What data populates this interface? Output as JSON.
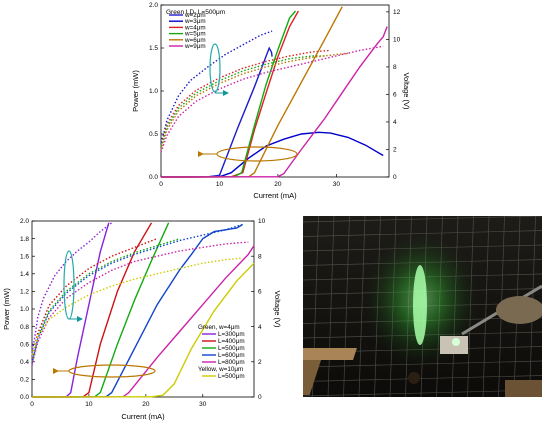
{
  "chart_data": [
    {
      "type": "line",
      "title": "Green LD, L=500μm",
      "xlabel": "Current (mA)",
      "ylabel": "Power (mW)",
      "y2label": "Voltage (V)",
      "xlim": [
        0,
        39
      ],
      "ylim": [
        0,
        2.0
      ],
      "y2lim": [
        0,
        12.5
      ],
      "xticks": [
        0,
        10,
        20,
        30
      ],
      "yticks": [
        0.0,
        0.5,
        1.0,
        1.5,
        2.0
      ],
      "y2ticks": [
        0,
        2,
        4,
        6,
        8,
        10,
        12
      ],
      "series": [
        {
          "name": "w=2μm",
          "color": "#1c1ccc",
          "power": [
            [
              0,
              0
            ],
            [
              8,
              0.002
            ],
            [
              10,
              0.02
            ],
            [
              13,
              0.55
            ],
            [
              16,
              1.05
            ],
            [
              18.5,
              1.5
            ],
            [
              18.9,
              1.45
            ],
            [
              19,
              1.4
            ]
          ],
          "voltage": [
            [
              0,
              2.5
            ],
            [
              0.5,
              3.2
            ],
            [
              1,
              4.1
            ],
            [
              3,
              5.9
            ],
            [
              5,
              7.0
            ],
            [
              8,
              8.0
            ],
            [
              11,
              8.9
            ],
            [
              14,
              9.6
            ],
            [
              17,
              10.3
            ],
            [
              19,
              10.6
            ]
          ]
        },
        {
          "name": "w=3μm",
          "color": "#0000cc",
          "power": [
            [
              0,
              0
            ],
            [
              10,
              0.002
            ],
            [
              12,
              0.05
            ],
            [
              15,
              0.22
            ],
            [
              18,
              0.36
            ],
            [
              21,
              0.44
            ],
            [
              24,
              0.5
            ],
            [
              27,
              0.52
            ],
            [
              29,
              0.51
            ],
            [
              32,
              0.46
            ],
            [
              35,
              0.37
            ],
            [
              38,
              0.25
            ]
          ],
          "voltage": []
        },
        {
          "name": "w=4μm",
          "color": "#dd2222",
          "power": [
            [
              0,
              0
            ],
            [
              12,
              0.002
            ],
            [
              14,
              0.05
            ],
            [
              16,
              0.55
            ],
            [
              18,
              0.98
            ],
            [
              20,
              1.4
            ],
            [
              22,
              1.75
            ],
            [
              23.5,
              1.93
            ]
          ],
          "voltage": [
            [
              0,
              2.2
            ],
            [
              1,
              3.8
            ],
            [
              3,
              5.2
            ],
            [
              6,
              6.3
            ],
            [
              10,
              7.2
            ],
            [
              14,
              7.9
            ],
            [
              18,
              8.4
            ],
            [
              22,
              8.8
            ],
            [
              26,
              9.1
            ],
            [
              29,
              9.2
            ]
          ]
        },
        {
          "name": "w=5μm",
          "color": "#11aa11",
          "power": [
            [
              0,
              0
            ],
            [
              12.5,
              0.002
            ],
            [
              13.8,
              0.05
            ],
            [
              16,
              0.6
            ],
            [
              18,
              1.08
            ],
            [
              20,
              1.48
            ],
            [
              22,
              1.85
            ],
            [
              23,
              1.93
            ]
          ],
          "voltage": [
            [
              0,
              2.2
            ],
            [
              1,
              3.6
            ],
            [
              3,
              5.0
            ],
            [
              6,
              6.1
            ],
            [
              10,
              7.0
            ],
            [
              14,
              7.7
            ],
            [
              18,
              8.2
            ],
            [
              22,
              8.6
            ],
            [
              26,
              8.8
            ],
            [
              28,
              8.8
            ]
          ]
        },
        {
          "name": "w=6μm",
          "color": "#bb7700",
          "power": [
            [
              0,
              0
            ],
            [
              15,
              0.002
            ],
            [
              16,
              0.05
            ],
            [
              20,
              0.6
            ],
            [
              24,
              1.1
            ],
            [
              28,
              1.6
            ],
            [
              31,
              1.98
            ]
          ],
          "voltage": [
            [
              0,
              2.0
            ],
            [
              1,
              3.4
            ],
            [
              3,
              4.8
            ],
            [
              6,
              5.9
            ],
            [
              10,
              6.8
            ],
            [
              14,
              7.5
            ],
            [
              18,
              8.0
            ],
            [
              22,
              8.4
            ],
            [
              26,
              8.7
            ],
            [
              30,
              8.9
            ],
            [
              32,
              9.0
            ]
          ]
        },
        {
          "name": "w=9μm",
          "color": "#cc22aa",
          "power": [
            [
              0,
              0
            ],
            [
              20,
              0.002
            ],
            [
              21,
              0.04
            ],
            [
              24,
              0.32
            ],
            [
              28,
              0.68
            ],
            [
              31,
              0.98
            ],
            [
              34,
              1.28
            ],
            [
              37,
              1.55
            ],
            [
              38,
              1.63
            ],
            [
              38.7,
              1.75
            ]
          ],
          "voltage": [
            [
              0,
              1.8
            ],
            [
              1,
              3.0
            ],
            [
              3,
              4.4
            ],
            [
              6,
              5.5
            ],
            [
              10,
              6.4
            ],
            [
              14,
              7.1
            ],
            [
              18,
              7.6
            ],
            [
              22,
              8.0
            ],
            [
              26,
              8.4
            ],
            [
              30,
              8.8
            ],
            [
              34,
              9.2
            ],
            [
              38,
              9.5
            ]
          ]
        }
      ]
    },
    {
      "type": "line",
      "xlabel": "Current (mA)",
      "ylabel": "Power (mW)",
      "y2label": "Voltage (V)",
      "xlim": [
        0,
        39
      ],
      "ylim": [
        0,
        2.0
      ],
      "y2lim": [
        0,
        10
      ],
      "xticks": [
        0,
        10,
        20,
        30
      ],
      "yticks": [
        0.0,
        0.2,
        0.4,
        0.6,
        0.8,
        1.0,
        1.2,
        1.4,
        1.6,
        1.8,
        2.0
      ],
      "y2ticks": [
        0,
        2,
        4,
        6,
        8,
        10
      ],
      "legend_heading": "Green, w=4μm",
      "legend_heading_2": "Yellow, w=10μm",
      "series": [
        {
          "name": "L=300μm",
          "color": "#8822dd",
          "power": [
            [
              0,
              0
            ],
            [
              6,
              0.002
            ],
            [
              6.8,
              0.05
            ],
            [
              8,
              0.45
            ],
            [
              10,
              1.05
            ],
            [
              12,
              1.65
            ],
            [
              13.5,
              1.98
            ]
          ],
          "voltage": [
            [
              0,
              2.5
            ],
            [
              0.5,
              3.4
            ],
            [
              1,
              4.5
            ],
            [
              2,
              5.6
            ],
            [
              4,
              6.9
            ],
            [
              6,
              7.7
            ],
            [
              8,
              8.3
            ],
            [
              10,
              8.8
            ],
            [
              12,
              9.4
            ],
            [
              14,
              9.9
            ]
          ]
        },
        {
          "name": "L=400μm",
          "color": "#cc1111",
          "power": [
            [
              0,
              0
            ],
            [
              9,
              0.002
            ],
            [
              10,
              0.05
            ],
            [
              12,
              0.6
            ],
            [
              15,
              1.2
            ],
            [
              18,
              1.65
            ],
            [
              21,
              1.98
            ]
          ],
          "voltage": [
            [
              0,
              2.2
            ],
            [
              1,
              3.6
            ],
            [
              3,
              5.2
            ],
            [
              6,
              6.3
            ],
            [
              10,
              7.3
            ],
            [
              14,
              8.0
            ],
            [
              18,
              8.5
            ],
            [
              22,
              9.0
            ]
          ]
        },
        {
          "name": "L=500μm",
          "color": "#11aa11",
          "power": [
            [
              0,
              0
            ],
            [
              11,
              0.002
            ],
            [
              12,
              0.05
            ],
            [
              15,
              0.6
            ],
            [
              18,
              1.1
            ],
            [
              21,
              1.55
            ],
            [
              24,
              1.98
            ]
          ],
          "voltage": [
            [
              0,
              2.0
            ],
            [
              1,
              3.4
            ],
            [
              3,
              4.9
            ],
            [
              6,
              6.0
            ],
            [
              10,
              7.0
            ],
            [
              14,
              7.7
            ],
            [
              18,
              8.2
            ],
            [
              22,
              8.6
            ],
            [
              26,
              9.0
            ]
          ]
        },
        {
          "name": "L=600μm",
          "color": "#1144cc",
          "power": [
            [
              0,
              0
            ],
            [
              13,
              0.002
            ],
            [
              14,
              0.05
            ],
            [
              18,
              0.55
            ],
            [
              22,
              1.05
            ],
            [
              26,
              1.45
            ],
            [
              28,
              1.62
            ],
            [
              30,
              1.8
            ],
            [
              32,
              1.88
            ],
            [
              34,
              1.9
            ],
            [
              36,
              1.92
            ],
            [
              37,
              1.96
            ]
          ],
          "voltage": [
            [
              0,
              1.9
            ],
            [
              1,
              3.3
            ],
            [
              3,
              4.8
            ],
            [
              6,
              5.9
            ],
            [
              10,
              6.9
            ],
            [
              14,
              7.6
            ],
            [
              18,
              8.1
            ],
            [
              22,
              8.5
            ],
            [
              26,
              8.9
            ],
            [
              30,
              9.2
            ],
            [
              34,
              9.5
            ],
            [
              37,
              9.8
            ]
          ]
        },
        {
          "name": "L=800μm",
          "color": "#cc22aa",
          "power": [
            [
              0,
              0
            ],
            [
              16,
              0.002
            ],
            [
              17,
              0.05
            ],
            [
              22,
              0.45
            ],
            [
              26,
              0.75
            ],
            [
              30,
              1.05
            ],
            [
              34,
              1.35
            ],
            [
              38,
              1.62
            ],
            [
              39,
              1.72
            ]
          ],
          "voltage": [
            [
              0,
              1.8
            ],
            [
              1,
              3.1
            ],
            [
              3,
              4.5
            ],
            [
              6,
              5.6
            ],
            [
              10,
              6.5
            ],
            [
              14,
              7.2
            ],
            [
              18,
              7.7
            ],
            [
              22,
              8.0
            ],
            [
              26,
              8.3
            ],
            [
              30,
              8.5
            ],
            [
              34,
              8.7
            ],
            [
              38,
              8.8
            ]
          ]
        },
        {
          "name": "L=500μm",
          "color": "#cccc00",
          "power": [
            [
              0,
              0
            ],
            [
              21,
              0.002
            ],
            [
              23,
              0.02
            ],
            [
              25,
              0.15
            ],
            [
              28,
              0.55
            ],
            [
              32,
              0.98
            ],
            [
              36,
              1.32
            ],
            [
              39,
              1.52
            ]
          ],
          "voltage": [
            [
              0,
              2.4
            ],
            [
              1,
              3.4
            ],
            [
              3,
              4.4
            ],
            [
              6,
              5.1
            ],
            [
              10,
              5.8
            ],
            [
              14,
              6.3
            ],
            [
              18,
              6.7
            ],
            [
              22,
              7.0
            ],
            [
              26,
              7.3
            ],
            [
              30,
              7.6
            ],
            [
              34,
              7.8
            ],
            [
              37,
              7.9
            ]
          ]
        }
      ]
    }
  ]
}
